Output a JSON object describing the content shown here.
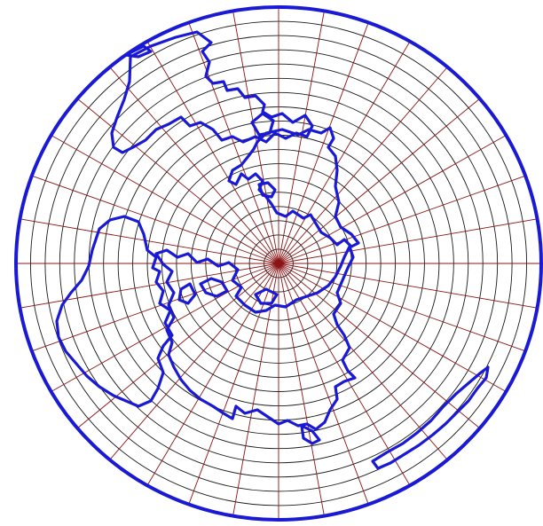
{
  "map": {
    "projection": "azimuthal-polar",
    "parallel_count": 18,
    "meridian_count": 36,
    "colors": {
      "background": "#ffffff",
      "parallels": "#1a1a1a",
      "meridians": "#8b1414",
      "coastline": "#1a1ad4",
      "border": "#1a1ad4"
    }
  }
}
